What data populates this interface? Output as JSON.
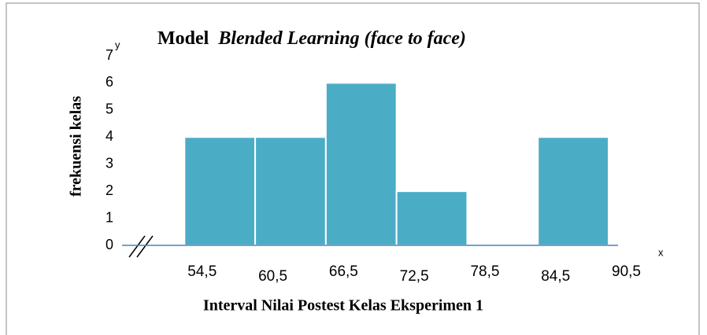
{
  "chart_data": {
    "type": "histogram",
    "title": "Model",
    "title_emphasis": "Blended Learning (face to face)",
    "x_label": "Interval Nilai Postest Kelas Eksperimen 1",
    "y_label": "frekuensi kelas",
    "x_axis_name": "x",
    "y_axis_name": "y",
    "bins": [
      {
        "value": 54.5,
        "label": "54,5"
      },
      {
        "value": 60.5,
        "label": "60,5"
      },
      {
        "value": 66.5,
        "label": "66,5"
      },
      {
        "value": 72.5,
        "label": "72,5"
      },
      {
        "value": 78.5,
        "label": "78,5"
      },
      {
        "value": 84.5,
        "label": "84,5"
      },
      {
        "value": 90.5,
        "label": "90,5"
      }
    ],
    "counts": [
      4,
      4,
      6,
      2,
      0,
      4
    ],
    "color": "#4bacc6",
    "axis_color": "#4f81bd",
    "xlim": [
      49.2,
      91.3
    ],
    "ylim": [
      0,
      7
    ],
    "yticks": [
      0,
      1,
      2,
      3,
      4,
      5,
      6,
      7
    ]
  }
}
